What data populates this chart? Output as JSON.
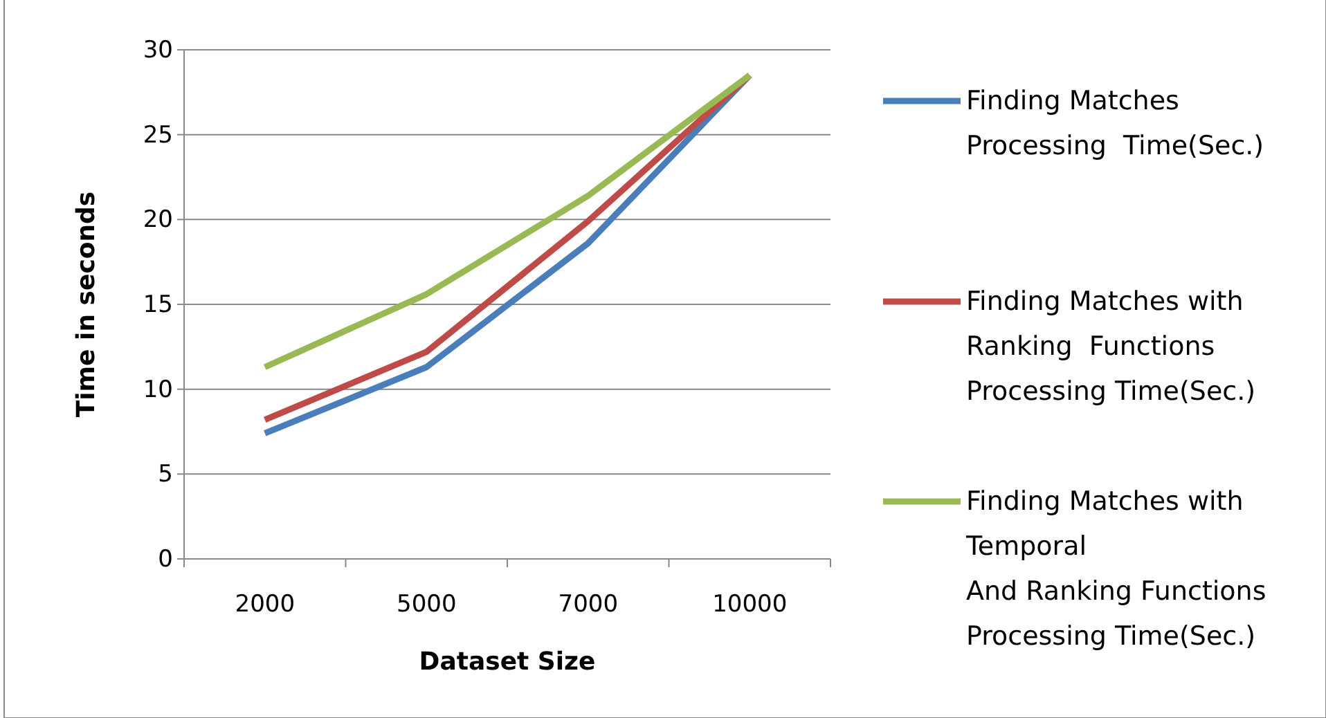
{
  "chart_data": {
    "type": "line",
    "xlabel": "Dataset Size",
    "ylabel": "Time in seconds",
    "categories": [
      "2000",
      "5000",
      "7000",
      "10000"
    ],
    "series": [
      {
        "name": "Finding Matches\nProcessing  Time(Sec.)",
        "color": "#4a7ebb",
        "values": [
          7.4,
          11.3,
          18.6,
          28.5
        ]
      },
      {
        "name": "Finding Matches with\nRanking  Functions\nProcessing Time(Sec.)",
        "color": "#be4b48",
        "values": [
          8.2,
          12.2,
          19.9,
          28.5
        ]
      },
      {
        "name": "Finding Matches with\nTemporal\nAnd Ranking Functions\nProcessing Time(Sec.)",
        "color": "#98b954",
        "values": [
          11.3,
          15.6,
          21.4,
          28.5
        ]
      }
    ],
    "ylim": [
      0,
      30
    ],
    "yticks": [
      0,
      5,
      10,
      15,
      20,
      25,
      30
    ],
    "grid": "y",
    "legend": "right",
    "marker": "none",
    "line_style": "solid"
  }
}
